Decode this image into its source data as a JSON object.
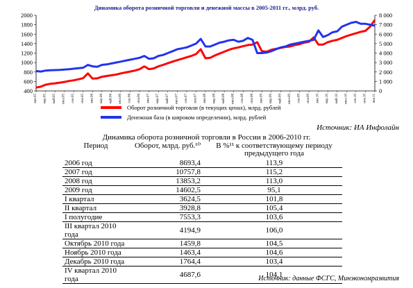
{
  "chart_data": {
    "type": "line",
    "title": "Динамика оборота розничной торговли и денежной массы в 2005-2011 гг., млрд. руб.",
    "x": [
      "янв.05",
      "",
      "мар.05",
      "",
      "май.05",
      "",
      "июл.05",
      "",
      "сен.05",
      "",
      "ноя.05",
      "",
      "янв.06",
      "",
      "мар.06",
      "",
      "май.06",
      "",
      "июл.06",
      "",
      "сен.06",
      "",
      "ноя.06",
      "",
      "янв.07",
      "",
      "мар.07",
      "",
      "май.07",
      "",
      "июл.07",
      "",
      "сен.07",
      "",
      "ноя.07",
      "",
      "янв.08",
      "",
      "мар.08",
      "",
      "май.08",
      "",
      "июл.08",
      "",
      "сен.08",
      "",
      "ноя.08",
      "",
      "янв.09",
      "",
      "мар.09",
      "",
      "май.09",
      "",
      "июл.09",
      "",
      "сен.09",
      "",
      "ноя.09",
      "",
      "янв.10",
      "",
      "мар.10",
      "",
      "май.10",
      "",
      "июл.10",
      "",
      "сен.10",
      "",
      "ноя.10",
      "",
      "янв.11"
    ],
    "ylim_left": [
      400,
      2000
    ],
    "yticks_left": [
      400,
      600,
      800,
      1000,
      1200,
      1400,
      1600,
      1800,
      2000
    ],
    "ylim_right": [
      0,
      8000
    ],
    "yticks_right": [
      "0",
      "1 000",
      "2 000",
      "3 000",
      "4 000",
      "5 000",
      "6 000",
      "7 000",
      "8 000"
    ],
    "series": [
      {
        "name": "Оборот розничной торговли (в текущих ценах), млрд. рублей",
        "color": "#ff0000",
        "axis": "left",
        "values": [
          470,
          490,
          530,
          550,
          560,
          575,
          590,
          610,
          625,
          645,
          670,
          770,
          660,
          665,
          700,
          715,
          730,
          745,
          770,
          790,
          810,
          830,
          860,
          920,
          860,
          875,
          920,
          950,
          985,
          1020,
          1050,
          1080,
          1110,
          1140,
          1180,
          1280,
          1090,
          1100,
          1150,
          1190,
          1230,
          1270,
          1300,
          1320,
          1345,
          1370,
          1380,
          1430,
          1240,
          1230,
          1270,
          1290,
          1310,
          1330,
          1340,
          1370,
          1390,
          1420,
          1440,
          1530,
          1380,
          1380,
          1430,
          1460,
          1480,
          1520,
          1560,
          1590,
          1620,
          1650,
          1670,
          1760,
          1900
        ]
      },
      {
        "name": "Денежная база (в широком определении), млрд. рублей",
        "color": "#2233ee",
        "axis": "right",
        "values": [
          2100,
          2050,
          2150,
          2180,
          2200,
          2220,
          2250,
          2300,
          2350,
          2400,
          2450,
          2750,
          2600,
          2550,
          2750,
          2800,
          2900,
          3000,
          3100,
          3200,
          3300,
          3400,
          3500,
          3700,
          3400,
          3450,
          3700,
          3800,
          4000,
          4200,
          4400,
          4500,
          4600,
          4800,
          5000,
          5500,
          4700,
          4700,
          4900,
          5100,
          5200,
          5350,
          5400,
          5200,
          5300,
          5600,
          5400,
          4000,
          4000,
          4050,
          4200,
          4400,
          4600,
          4700,
          4900,
          5000,
          5100,
          5200,
          5300,
          5400,
          6400,
          5700,
          5900,
          6200,
          6300,
          6800,
          7000,
          7200,
          7300,
          7100,
          7100,
          7000,
          6900
        ]
      }
    ]
  },
  "source1": "Источник: ИА Инфолайн",
  "table": {
    "title": "Динамика оборота розничной торговли в России в 2006-2010 гг.",
    "headers": [
      "Период",
      "Оборот, млрд. руб.¹⁰",
      "В %¹¹ к соответствующему периоду предыдущего года"
    ],
    "rows": [
      [
        "2006 год",
        "8693,4",
        "113,9"
      ],
      [
        "2007 год",
        "10757,8",
        "115,2"
      ],
      [
        "2008 год",
        "13853,2",
        "113,0"
      ],
      [
        "2009 год",
        "14602,5",
        "95,1"
      ],
      [
        "I квартал",
        "3624,5",
        "101,8"
      ],
      [
        "II квартал",
        "3928,8",
        "105,4"
      ],
      [
        "I полугодие",
        "7553,3",
        "103,6"
      ],
      [
        "III квартал 2010 года",
        "4194,9",
        "106,0"
      ],
      [
        "Октябрь 2010 года",
        "1459,8",
        "104,5"
      ],
      [
        "Ноябрь 2010 года",
        "1463,4",
        "104,6"
      ],
      [
        "Декабрь 2010 года",
        "1764,4",
        "103,4"
      ],
      [
        "IV квартал 2010 года",
        "4687,6",
        "104,1"
      ]
    ]
  },
  "source2": "Источник: данные ФСГС, Минэкономразвития"
}
